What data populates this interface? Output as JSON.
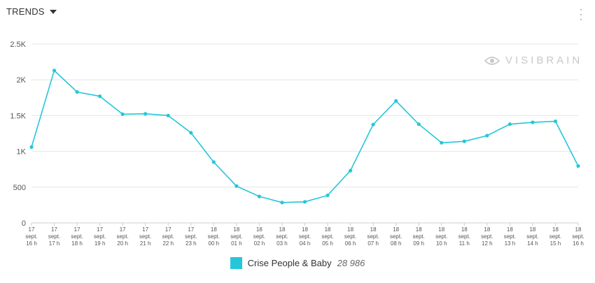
{
  "header": {
    "title": "TRENDS"
  },
  "watermark": {
    "text": "VISIBRAIN"
  },
  "colors": {
    "series": "#26c6da",
    "grid": "#e6e6e6",
    "axis": "#cccccc"
  },
  "chart_data": {
    "type": "line",
    "title": "",
    "xlabel": "",
    "ylabel": "",
    "ylim": [
      0,
      2500
    ],
    "yticks": [
      0,
      500,
      1000,
      1500,
      2000,
      2500
    ],
    "ytick_labels": [
      "0",
      "500",
      "1K",
      "1.5K",
      "2K",
      "2.5K"
    ],
    "grid": true,
    "legend": "bottom-center",
    "categories": [
      [
        "17",
        "sept.",
        "16 h"
      ],
      [
        "17",
        "sept.",
        "17 h"
      ],
      [
        "17",
        "sept.",
        "18 h"
      ],
      [
        "17",
        "sept.",
        "19 h"
      ],
      [
        "17",
        "sept.",
        "20 h"
      ],
      [
        "17",
        "sept.",
        "21 h"
      ],
      [
        "17",
        "sept.",
        "22 h"
      ],
      [
        "17",
        "sept.",
        "23 h"
      ],
      [
        "18",
        "sept.",
        "00 h"
      ],
      [
        "18",
        "sept.",
        "01 h"
      ],
      [
        "18",
        "sept.",
        "02 h"
      ],
      [
        "18",
        "sept.",
        "03 h"
      ],
      [
        "18",
        "sept.",
        "04 h"
      ],
      [
        "18",
        "sept.",
        "05 h"
      ],
      [
        "18",
        "sept.",
        "06 h"
      ],
      [
        "18",
        "sept.",
        "07 h"
      ],
      [
        "18",
        "sept.",
        "08 h"
      ],
      [
        "18",
        "sept.",
        "09 h"
      ],
      [
        "18",
        "sept.",
        "10 h"
      ],
      [
        "18",
        "sept.",
        "11 h"
      ],
      [
        "18",
        "sept.",
        "12 h"
      ],
      [
        "18",
        "sept.",
        "13 h"
      ],
      [
        "18",
        "sept.",
        "14 h"
      ],
      [
        "18",
        "sept.",
        "15 h"
      ],
      [
        "18",
        "sept.",
        "16 h"
      ]
    ],
    "series": [
      {
        "name": "Crise People & Baby",
        "total": "28 986",
        "values": [
          1060,
          2130,
          1830,
          1770,
          1520,
          1525,
          1500,
          1260,
          850,
          515,
          370,
          285,
          295,
          385,
          730,
          1375,
          1705,
          1380,
          1120,
          1140,
          1220,
          1380,
          1405,
          1420,
          795
        ]
      }
    ]
  }
}
